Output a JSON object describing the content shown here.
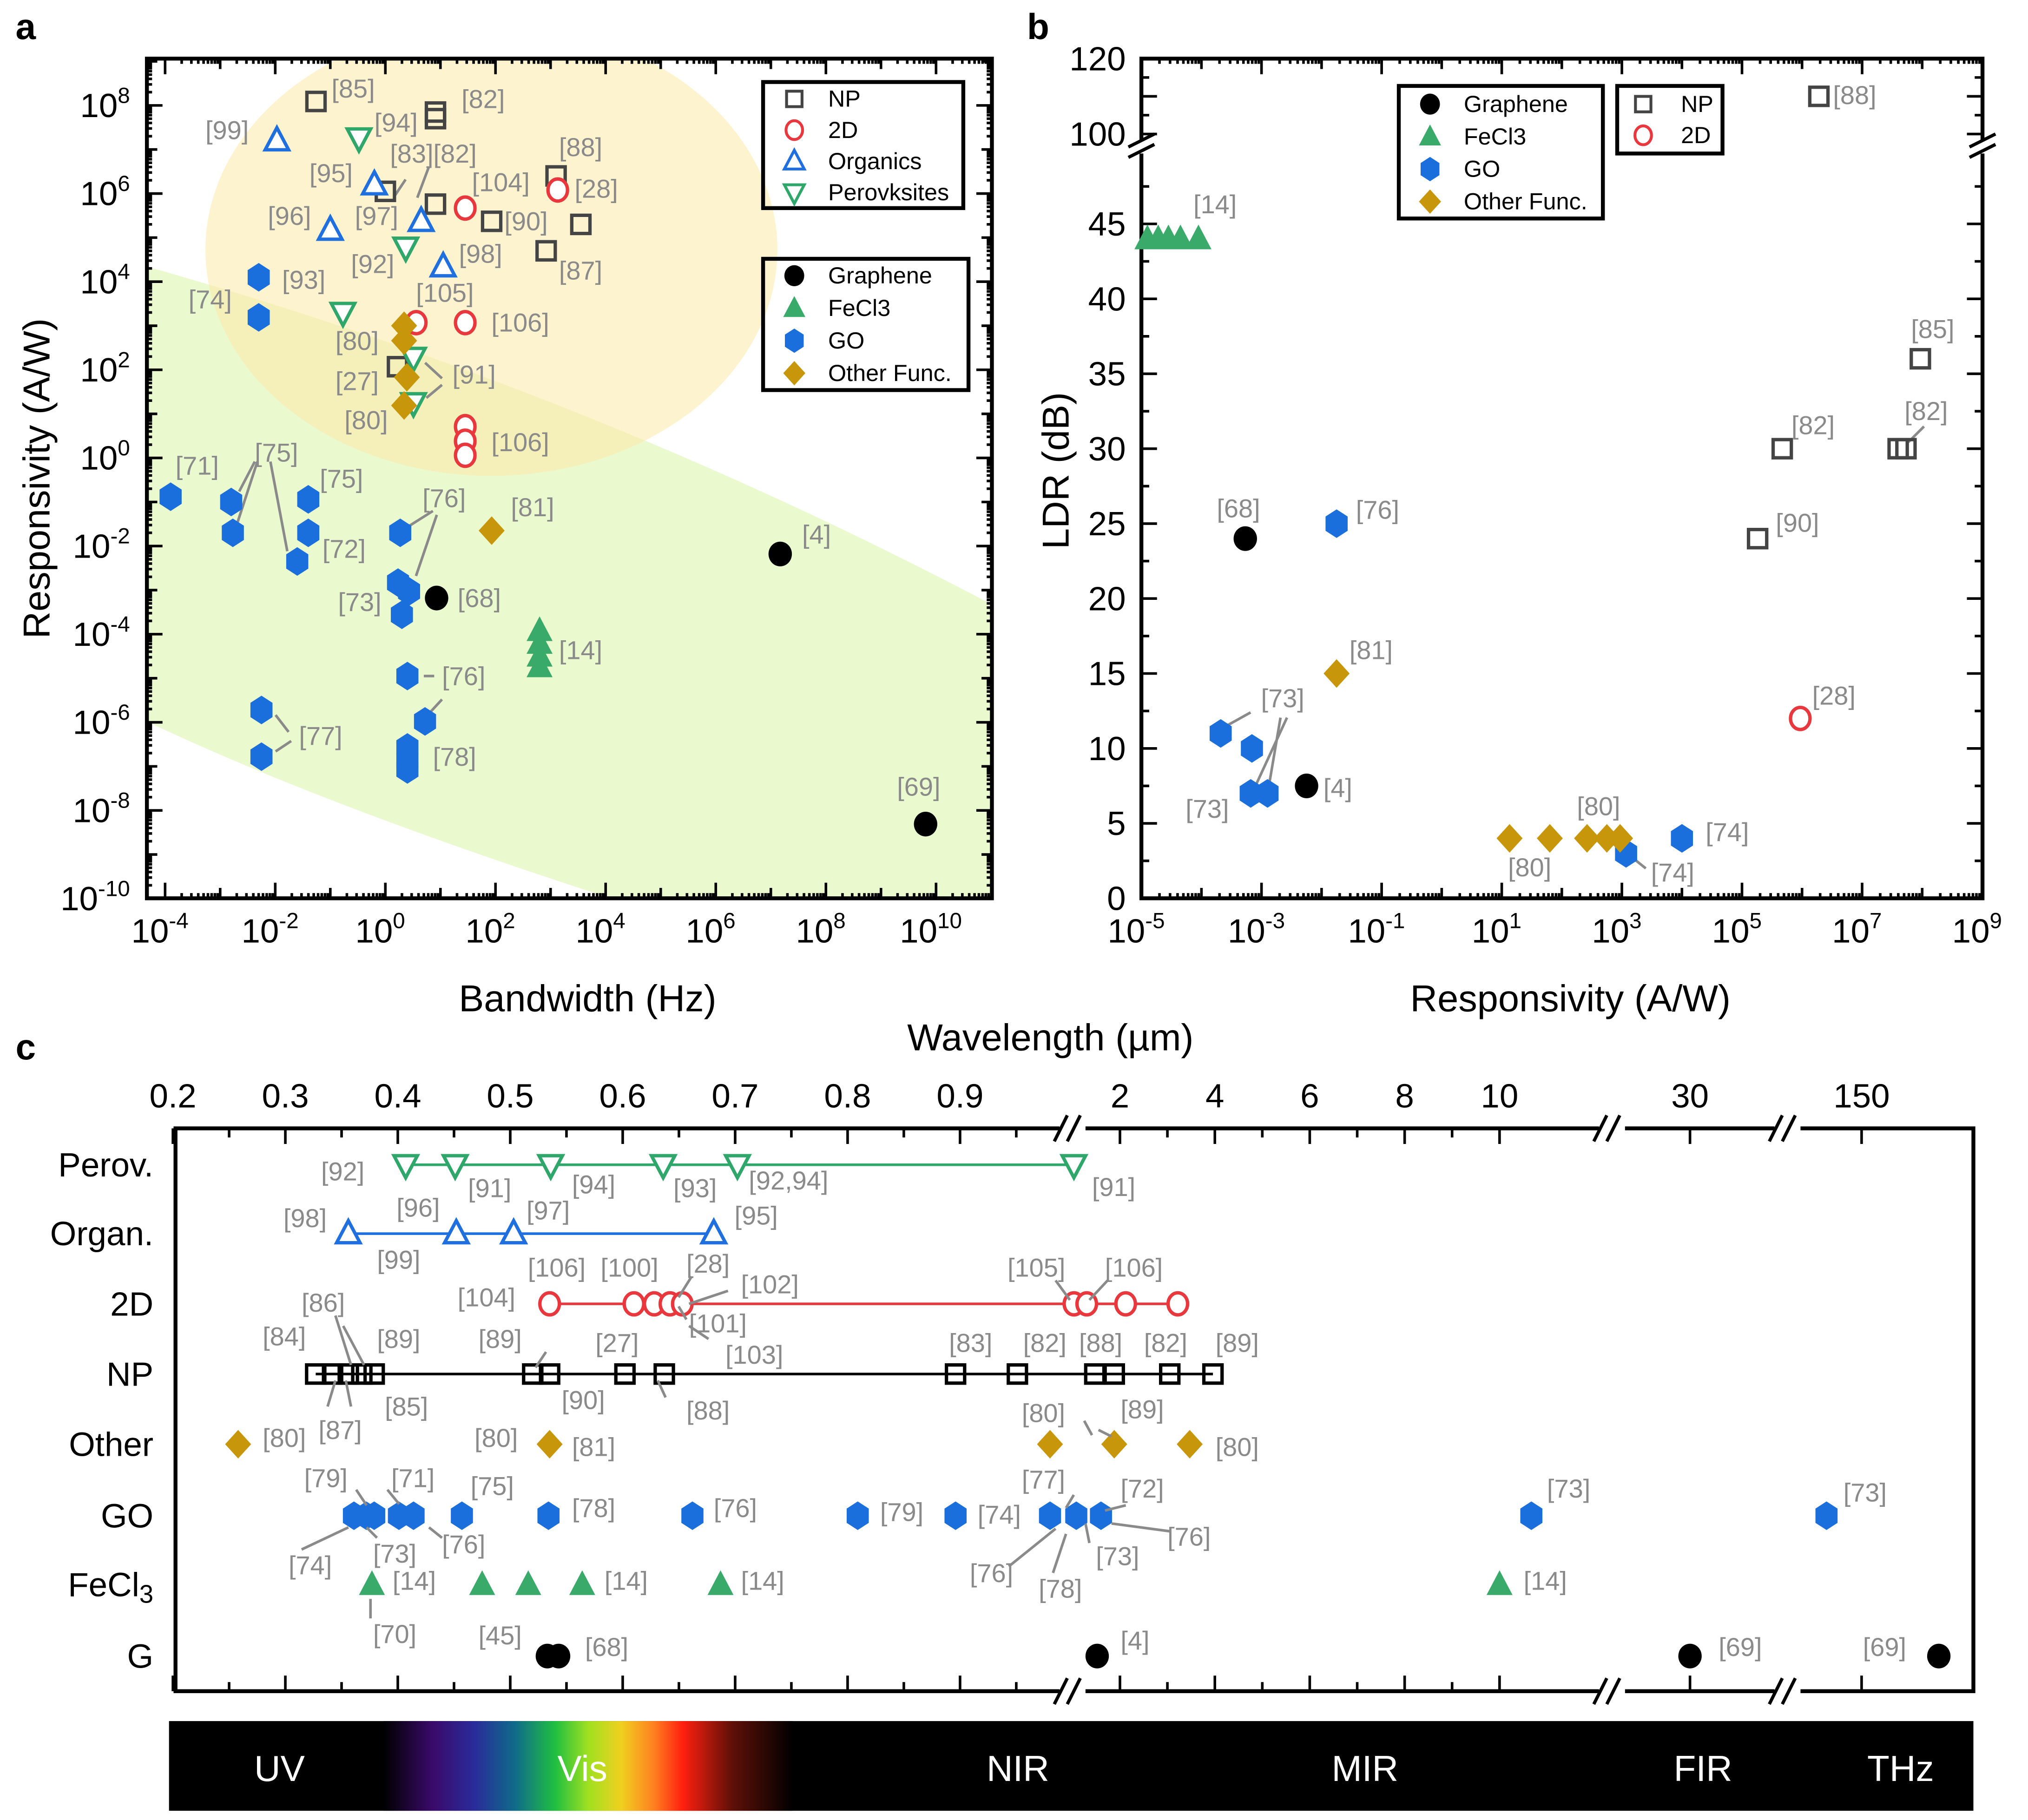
{
  "panel_letters": {
    "a": "a",
    "b": "b",
    "c": "c"
  },
  "chart_data": [
    {
      "panel": "a",
      "type": "scatter",
      "xlabel": "Bandwidth (Hz)",
      "ylabel": "Responsivity (A/W)",
      "xscale": "log",
      "yscale": "log",
      "values_are_log10": true,
      "x_tick_exponents": [
        -4,
        -2,
        0,
        2,
        4,
        6,
        8,
        10
      ],
      "y_tick_exponents": [
        8,
        6,
        4,
        2,
        0,
        -2,
        -4,
        -6,
        -8,
        -10
      ],
      "tick_base": "10",
      "xlim_log10": [
        -4.33,
        11.0
      ],
      "ylim_log10": [
        -10,
        9.06
      ],
      "legend_1": [
        "NP",
        "2D",
        "Organics",
        "Perovksites"
      ],
      "legend_2": [
        "Graphene",
        "FeCl3",
        "GO",
        "Other Func."
      ],
      "series": [
        {
          "name": "NP",
          "marker": "open-square",
          "color": "#444444",
          "points": [
            [
              -1.26,
              8.09
            ],
            [
              0.91,
              7.85
            ],
            [
              0.91,
              7.7
            ],
            [
              0.0,
              6.05
            ],
            [
              0.91,
              5.76
            ],
            [
              1.93,
              5.37
            ],
            [
              3.1,
              6.4
            ],
            [
              3.55,
              5.3
            ],
            [
              2.92,
              4.7
            ],
            [
              0.22,
              2.07
            ]
          ]
        },
        {
          "name": "2D",
          "marker": "open-circle",
          "color": "#e8383d",
          "points": [
            [
              1.45,
              5.67
            ],
            [
              3.13,
              6.08
            ],
            [
              0.56,
              3.07
            ],
            [
              1.45,
              3.07
            ],
            [
              1.45,
              0.71
            ],
            [
              1.45,
              0.38
            ],
            [
              1.45,
              0.06
            ]
          ]
        },
        {
          "name": "Organics",
          "marker": "open-triangle-up",
          "color": "#1f6fde",
          "points": [
            [
              -1.97,
              7.2
            ],
            [
              -0.2,
              6.2
            ],
            [
              -1.0,
              5.17
            ],
            [
              0.65,
              5.37
            ],
            [
              1.05,
              4.34
            ]
          ]
        },
        {
          "name": "Perovksites",
          "marker": "open-triangle-down",
          "color": "#2fa66a",
          "points": [
            [
              -0.48,
              7.26
            ],
            [
              0.37,
              4.78
            ],
            [
              -0.77,
              3.3
            ],
            [
              0.51,
              2.28
            ],
            [
              0.51,
              1.25
            ]
          ]
        },
        {
          "name": "Graphene",
          "marker": "filled-circle",
          "color": "#000000",
          "points": [
            [
              0.93,
              -3.18
            ],
            [
              7.17,
              -2.18
            ],
            [
              9.81,
              -8.31
            ]
          ]
        },
        {
          "name": "FeCl3",
          "marker": "filled-triangle-up",
          "color": "#3aaa6a",
          "points": [
            [
              2.8,
              -3.92
            ],
            [
              2.8,
              -4.21
            ],
            [
              2.8,
              -4.5
            ],
            [
              2.8,
              -4.74
            ]
          ]
        },
        {
          "name": "GO",
          "marker": "hexagon",
          "color": "#1a6fdc",
          "points": [
            [
              -2.3,
              4.1
            ],
            [
              -2.3,
              3.19
            ],
            [
              -3.9,
              -0.88
            ],
            [
              -2.8,
              -1.0
            ],
            [
              -2.77,
              -1.7
            ],
            [
              -1.4,
              -0.94
            ],
            [
              -1.4,
              -1.7
            ],
            [
              -1.6,
              -2.35
            ],
            [
              0.27,
              -1.7
            ],
            [
              0.23,
              -2.83
            ],
            [
              0.43,
              -3.03
            ],
            [
              0.3,
              -3.56
            ],
            [
              0.4,
              -4.95
            ],
            [
              0.72,
              -5.98
            ],
            [
              -2.25,
              -5.72
            ],
            [
              -2.25,
              -6.78
            ],
            [
              0.4,
              -6.57
            ],
            [
              0.4,
              -6.87
            ],
            [
              0.4,
              -7.07
            ]
          ]
        },
        {
          "name": "Other Func.",
          "marker": "diamond",
          "color": "#c8960a",
          "points": [
            [
              0.34,
              3.0
            ],
            [
              0.34,
              2.66
            ],
            [
              0.39,
              1.83
            ],
            [
              0.34,
              1.19
            ],
            [
              1.93,
              -1.65
            ]
          ]
        }
      ],
      "annotations": [
        "[85]",
        "[82]",
        "[99]",
        "[94]",
        "[83][82]",
        "[95]",
        "[104]",
        "[88]",
        "[28]",
        "[96]",
        "[97]",
        "[90]",
        "[92]",
        "[98]",
        "[87]",
        "[93]",
        "[74]",
        "[105]",
        "[106]",
        "[80]",
        "[27]",
        "[91]",
        "[80]",
        "[106]",
        "[71]",
        "[75]",
        "[75]",
        "[72]",
        "[76]",
        "[81]",
        "[4]",
        "[73]",
        "[68]",
        "[14]",
        "[76]",
        "[77]",
        "[78]",
        "[69]"
      ]
    },
    {
      "panel": "b",
      "type": "scatter",
      "xlabel": "Responsivity (A/W)",
      "ylabel": "LDR (dB)",
      "xscale": "log",
      "x_values_are_log10": true,
      "x_tick_exponents": [
        -5,
        -3,
        -1,
        1,
        3,
        5,
        7,
        9
      ],
      "tick_base": "10",
      "y_ticks_lower": [
        "0",
        "5",
        "10",
        "15",
        "20",
        "25",
        "30",
        "35",
        "40",
        "45"
      ],
      "y_ticks_upper": [
        "100",
        "120"
      ],
      "y_axis_break": [
        50,
        95
      ],
      "legend_1": [
        "Graphene",
        "FeCl3",
        "GO",
        "Other Func."
      ],
      "legend_2": [
        "NP",
        "2D"
      ],
      "series": [
        {
          "name": "Graphene",
          "marker": "filled-circle",
          "color": "#000000",
          "points": [
            [
              -3.27,
              24
            ],
            [
              -2.25,
              7.5
            ]
          ]
        },
        {
          "name": "FeCl3",
          "marker": "filled-triangle-up",
          "color": "#3aaa6a",
          "points": [
            [
              -4.9,
              44
            ],
            [
              -4.72,
              44
            ],
            [
              -4.55,
              44
            ],
            [
              -4.35,
              44
            ],
            [
              -4.05,
              44
            ]
          ]
        },
        {
          "name": "GO",
          "marker": "hexagon",
          "color": "#1a6fdc",
          "points": [
            [
              -1.75,
              25
            ],
            [
              -3.68,
              11
            ],
            [
              -3.16,
              10
            ],
            [
              -3.18,
              7
            ],
            [
              -2.9,
              7
            ],
            [
              3.07,
              3
            ],
            [
              4.0,
              4
            ]
          ]
        },
        {
          "name": "Other Func.",
          "marker": "diamond",
          "color": "#c8960a",
          "points": [
            [
              -1.75,
              15
            ],
            [
              1.13,
              4
            ],
            [
              1.8,
              4
            ],
            [
              2.42,
              4
            ],
            [
              2.75,
              4
            ],
            [
              2.97,
              4
            ]
          ]
        },
        {
          "name": "NP",
          "marker": "open-square",
          "color": "#444444",
          "points": [
            [
              5.26,
              24
            ],
            [
              5.67,
              30
            ],
            [
              7.6,
              30
            ],
            [
              7.73,
              30
            ],
            [
              7.97,
              36
            ],
            [
              6.28,
              110
            ]
          ]
        },
        {
          "name": "2D",
          "marker": "open-circle",
          "color": "#e8383d",
          "points": [
            [
              5.97,
              12
            ]
          ]
        }
      ],
      "annotations": [
        "[88]",
        "[14]",
        "[85]",
        "[82]",
        "[82]",
        "[90]",
        "[68]",
        "[76]",
        "[81]",
        "[28]",
        "[73]",
        "[73]",
        "[4]",
        "[80]",
        "[80]",
        "[74]",
        "[74]"
      ]
    },
    {
      "panel": "c",
      "type": "scatter",
      "xlabel": "Wavelength (µm)",
      "x_ticks": [
        {
          "value": 0.2,
          "label": "0.2"
        },
        {
          "value": 0.3,
          "label": "0.3"
        },
        {
          "value": 0.4,
          "label": "0.4"
        },
        {
          "value": 0.5,
          "label": "0.5"
        },
        {
          "value": 0.6,
          "label": "0.6"
        },
        {
          "value": 0.7,
          "label": "0.7"
        },
        {
          "value": 0.8,
          "label": "0.8"
        },
        {
          "value": 0.9,
          "label": "0.9"
        },
        {
          "value": 2,
          "label": "2"
        },
        {
          "value": 4,
          "label": "4"
        },
        {
          "value": 6,
          "label": "6"
        },
        {
          "value": 8,
          "label": "8"
        },
        {
          "value": 10,
          "label": "10"
        },
        {
          "value": 30,
          "label": "30"
        },
        {
          "value": 150,
          "label": "150"
        }
      ],
      "axis_breaks_um": [
        1.0,
        12,
        60
      ],
      "categories": [
        "Perov.",
        "Organ.",
        "2D",
        "NP",
        "Other",
        "GO",
        "FeCl3",
        "G"
      ],
      "series": [
        {
          "name": "Perov.",
          "marker": "open-triangle-down",
          "color": "#2fa66a",
          "connected": true,
          "wavelengths": [
            0.407,
            0.451,
            0.536,
            0.636,
            0.702,
            1.03
          ]
        },
        {
          "name": "Organ.",
          "marker": "open-triangle-up",
          "color": "#1f6fde",
          "connected": true,
          "wavelengths": [
            0.356,
            0.452,
            0.503,
            0.681
          ]
        },
        {
          "name": "2D",
          "marker": "open-circle",
          "color": "#e8383d",
          "connected": true,
          "wavelengths": [
            0.535,
            0.61,
            0.628,
            0.642,
            0.653,
            1.03,
            1.3,
            2.12,
            3.22
          ]
        },
        {
          "name": "NP",
          "marker": "open-square",
          "color": "#000000",
          "connected": true,
          "wavelengths": [
            0.327,
            0.342,
            0.356,
            0.368,
            0.379,
            0.52,
            0.535,
            0.602,
            0.637,
            0.896,
            0.951,
            1.47,
            1.88,
            3.05,
            3.96
          ]
        },
        {
          "name": "Other",
          "marker": "diamond",
          "color": "#c8960a",
          "connected": false,
          "wavelengths": [
            0.258,
            0.535,
            0.98,
            1.88,
            3.47
          ]
        },
        {
          "name": "GO",
          "marker": "hexagon",
          "color": "#1a6fdc",
          "connected": false,
          "wavelengths": [
            0.361,
            0.372,
            0.379,
            0.401,
            0.414,
            0.457,
            0.534,
            0.662,
            0.809,
            0.896,
            0.98,
            1.08,
            1.6,
            10.67,
            100
          ]
        },
        {
          "name": "FeCl3",
          "marker": "filled-triangle-up",
          "color": "#3aaa6a",
          "connected": false,
          "wavelengths": [
            0.377,
            0.475,
            0.516,
            0.564,
            0.687,
            10.0
          ]
        },
        {
          "name": "G",
          "marker": "filled-circle",
          "color": "#000000",
          "connected": false,
          "wavelengths": [
            0.533,
            0.543,
            1.52,
            30,
            260
          ]
        }
      ],
      "annotations": [
        "[92]",
        "[91]",
        "[94]",
        "[93]",
        "[92,94]",
        "[91]",
        "[98]",
        "[96]",
        "[97]",
        "[99]",
        "[95]",
        "[104]",
        "[106]",
        "[100]",
        "[28]",
        "[102]",
        "[101]",
        "[103]",
        "[105]",
        "[106]",
        "[84]",
        "[86]",
        "[89]",
        "[89]",
        "[27]",
        "[83]",
        "[82]",
        "[88]",
        "[82]",
        "[89]",
        "[85]",
        "[87]",
        "[90]",
        "[88]",
        "[89]",
        "[80]",
        "[80]",
        "[81]",
        "[80]",
        "[80]",
        "[79]",
        "[71]",
        "[75]",
        "[78]",
        "[76]",
        "[79]",
        "[74]",
        "[77]",
        "[72]",
        "[76]",
        "[73]",
        "[78]",
        "[76]",
        "[74]",
        "[73]",
        "[76]",
        "[73]",
        "[73]",
        "[14]",
        "[70]",
        "[14]",
        "[14]",
        "[14]",
        "[45]",
        "[68]",
        "[4]",
        "[69]",
        "[69]"
      ],
      "spectrum_bands": [
        "UV",
        "Vis",
        "NIR",
        "MIR",
        "FIR",
        "THz"
      ]
    }
  ]
}
